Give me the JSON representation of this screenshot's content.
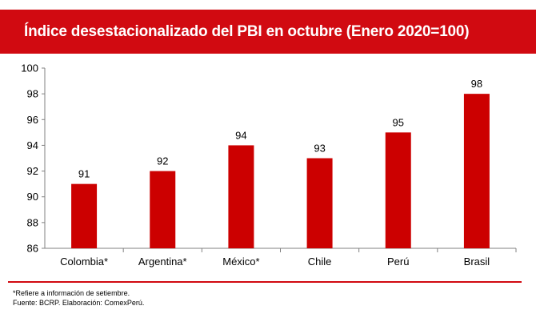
{
  "header": {
    "title": "Índice desestacionalizado  del PBI en octubre (Enero 2020=100)"
  },
  "chart_data": {
    "type": "bar",
    "title": "Índice desestacionalizado  del PBI en octubre (Enero 2020=100)",
    "categories": [
      "Colombia*",
      "Argentina*",
      "México*",
      "Chile",
      "Perú",
      "Brasil"
    ],
    "values": [
      91,
      92,
      94,
      93,
      95,
      98
    ],
    "data_labels": [
      "91",
      "92",
      "94",
      "93",
      "95",
      "98"
    ],
    "ylim": [
      86,
      100
    ],
    "yticks": [
      "86",
      "88",
      "90",
      "92",
      "94",
      "96",
      "98",
      "100"
    ],
    "xlabel": "",
    "ylabel": "",
    "grid": false,
    "legend": "none",
    "bar_color": "#cc0000"
  },
  "footer": {
    "note": "*Refiere a información de setiembre.",
    "source": "Fuente: BCRP. Elaboración: ComexPerú."
  }
}
